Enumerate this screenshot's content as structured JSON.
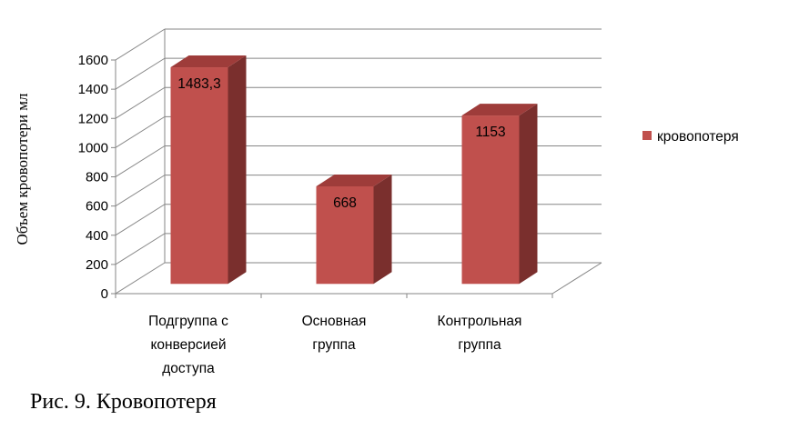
{
  "chart_data": {
    "type": "bar",
    "categories": [
      "Подгруппа с конверсией доступа",
      "Основная группа",
      "Контрольная группа"
    ],
    "category_lines": [
      [
        "Подгруппа с",
        "конверсией",
        "доступа"
      ],
      [
        "Основная",
        "группа"
      ],
      [
        "Контрольная",
        "группа"
      ]
    ],
    "series": [
      {
        "name": "кровопотеря",
        "values": [
          1483.3,
          668,
          1153
        ],
        "color": "#c0504d"
      }
    ],
    "data_labels": [
      "1483,3",
      "668",
      "1153"
    ],
    "ylabel": "Объем кровопотери мл",
    "ylim": [
      0,
      1600
    ],
    "yticks": [
      0,
      200,
      400,
      600,
      800,
      1000,
      1200,
      1400,
      1600
    ],
    "grid": true,
    "legend_position": "right",
    "style": "3d-column"
  },
  "caption": "Рис. 9. Кровопотеря"
}
